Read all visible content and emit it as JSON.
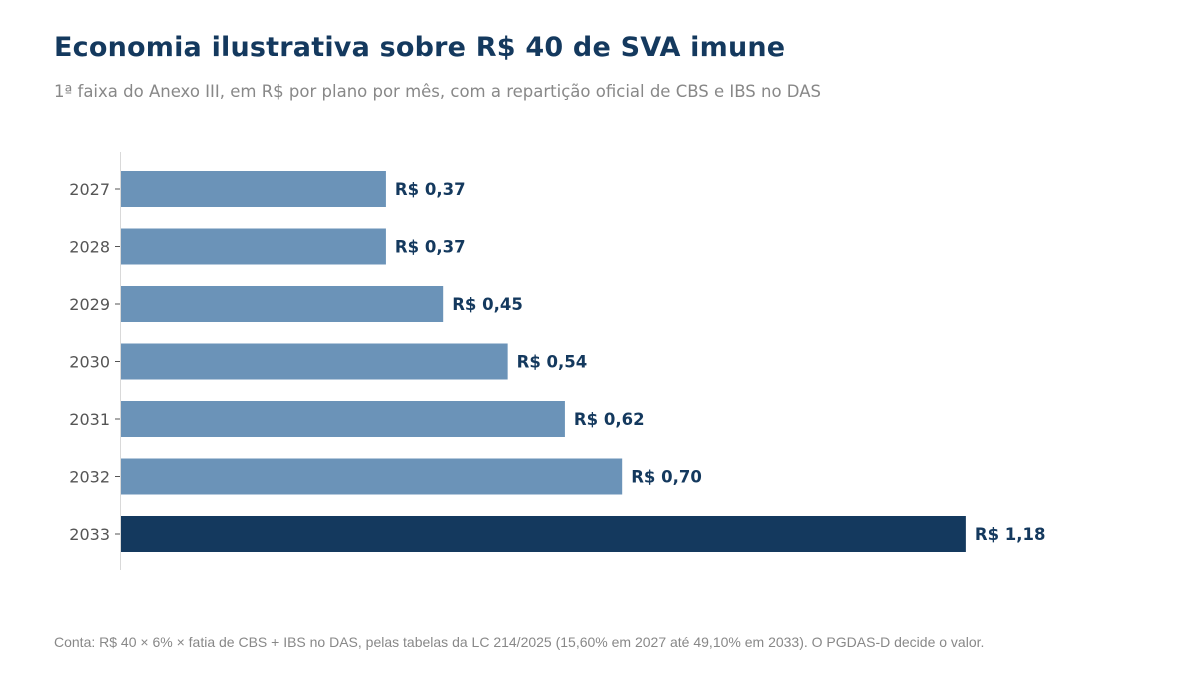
{
  "header": {
    "title": "Economia ilustrativa sobre R$ 40 de SVA imune",
    "subtitle": "1ª faixa do Anexo III, em R$ por plano por mês, com a repartição oficial de CBS e IBS no DAS"
  },
  "footnote": "Conta: R$ 40 × 6% × fatia de CBS + IBS no DAS, pelas tabelas da LC 214/2025 (15,60% em 2027 até 49,10% em 2033). O PGDAS-D decide o valor.",
  "colors": {
    "bar": "#6b93b8",
    "highlight": "#14395e",
    "label": "#14395e",
    "axis": "#d9d9d9"
  },
  "chart_data": {
    "type": "bar",
    "orientation": "horizontal",
    "categories": [
      "2027",
      "2028",
      "2029",
      "2030",
      "2031",
      "2032",
      "2033"
    ],
    "values": [
      0.37,
      0.37,
      0.45,
      0.54,
      0.62,
      0.7,
      1.18
    ],
    "data_labels": [
      "R$ 0,37",
      "R$ 0,37",
      "R$ 0,45",
      "R$ 0,54",
      "R$ 0,62",
      "R$ 0,70",
      "R$ 1,18"
    ],
    "highlight_category": "2033",
    "xlim": [
      0,
      1.4
    ],
    "grid": false,
    "title": "Economia ilustrativa sobre R$ 40 de SVA imune",
    "xlabel": "",
    "ylabel": ""
  }
}
